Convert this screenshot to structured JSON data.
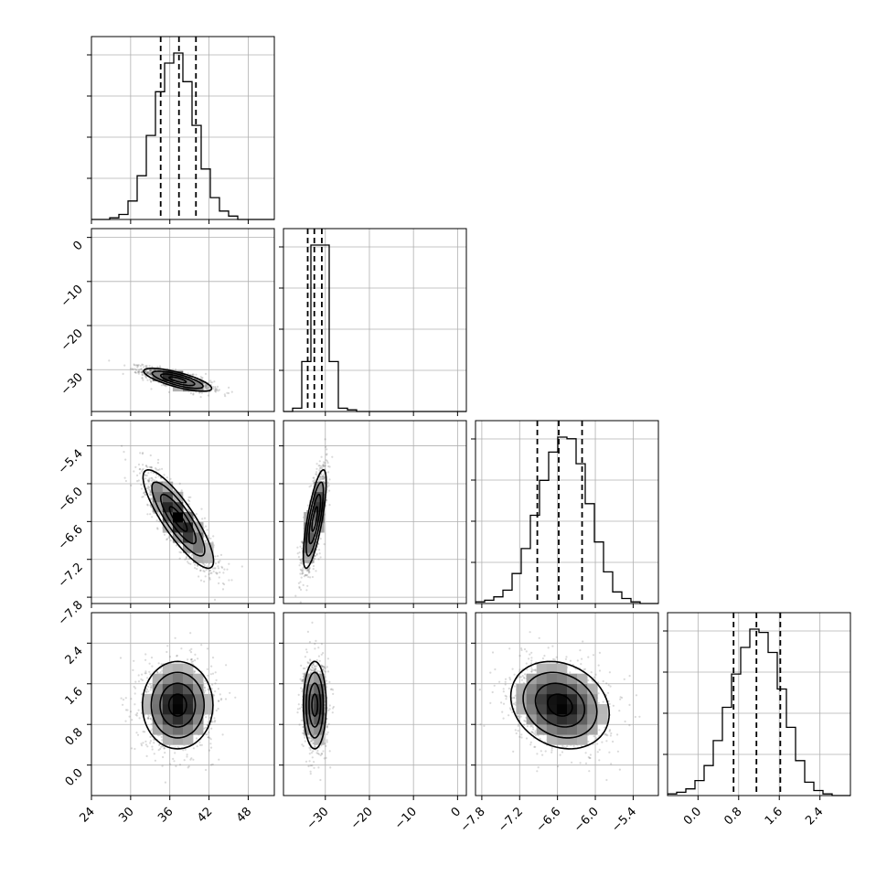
{
  "chart_data": {
    "type": "corner",
    "title": "",
    "parameter_labels": [],
    "grid": true,
    "colors": {
      "marks": "#000000",
      "grid": "#b0b0b0",
      "points": "#555555"
    },
    "axes": {
      "p1": {
        "range": [
          24,
          52
        ],
        "ticks": [
          24,
          30,
          36,
          42,
          48
        ],
        "tick_labels": [
          "24",
          "30",
          "36",
          "42",
          "48"
        ]
      },
      "p2": {
        "range": [
          -39.5,
          2
        ],
        "ticks": [
          0,
          -10,
          -20,
          -30
        ],
        "tick_labels": [
          "0",
          "−10",
          "−20",
          "−30"
        ]
      },
      "p3": {
        "range": [
          -7.9,
          -5.0
        ],
        "ticks": [
          -5.4,
          -6.0,
          -6.6,
          -7.2,
          -7.8
        ],
        "tick_labels": [
          "−5.4",
          "−6.0",
          "−6.6",
          "−7.2",
          "−7.8"
        ]
      },
      "p4": {
        "range": [
          -0.6,
          3.0
        ],
        "ticks": [
          0.0,
          0.8,
          1.6,
          2.4
        ],
        "tick_labels": [
          "0.0",
          "0.8",
          "1.6",
          "2.4"
        ]
      }
    },
    "bottom_axis_labels": {
      "p1": [
        "24",
        "30",
        "36",
        "42",
        "48"
      ],
      "p2": [
        "−30",
        "−20",
        "−10",
        "0"
      ],
      "p3": [
        "−7.8",
        "−7.2",
        "−6.6",
        "−6.0",
        "−5.4"
      ],
      "p4": [
        "0.0",
        "0.8",
        "1.6",
        "2.4"
      ]
    },
    "left_axis_labels": {
      "p2": [
        "0",
        "−10",
        "−20",
        "−30"
      ],
      "p3": [
        "−5.4",
        "−6.0",
        "−6.6",
        "−7.2",
        "−7.8"
      ],
      "p4": [
        "2.4",
        "1.6",
        "0.8",
        "0.0"
      ]
    },
    "marginals": {
      "p1": {
        "bin_start": 24,
        "bin_width": 1.4,
        "counts": [
          0,
          0,
          1,
          3,
          11,
          26,
          50,
          76,
          93,
          99,
          82,
          56,
          30,
          13,
          5,
          2,
          0,
          0,
          0,
          0
        ],
        "quantiles": [
          34.6,
          37.4,
          40.0
        ]
      },
      "p2": {
        "bin_start": -39.5,
        "bin_width": 2.075,
        "counts": [
          0,
          2,
          30,
          100,
          100,
          30,
          2,
          1,
          0,
          0,
          0,
          0,
          0,
          0,
          0,
          0,
          0,
          0,
          0,
          0
        ],
        "quantiles": [
          -34.0,
          -32.5,
          -30.8
        ]
      },
      "p3": {
        "bin_start": -7.9,
        "bin_width": 0.145,
        "counts": [
          1,
          2,
          4,
          8,
          18,
          33,
          53,
          74,
          91,
          100,
          99,
          84,
          60,
          37,
          19,
          7,
          3,
          1,
          0,
          0
        ],
        "quantiles": [
          -6.92,
          -6.58,
          -6.21
        ]
      },
      "p4": {
        "bin_start": -0.6,
        "bin_width": 0.18,
        "counts": [
          1,
          2,
          4,
          9,
          18,
          33,
          53,
          73,
          89,
          100,
          98,
          86,
          64,
          41,
          21,
          8,
          3,
          1,
          0,
          0
        ],
        "quantiles": [
          0.7,
          1.15,
          1.62
        ]
      }
    },
    "pairs": [
      {
        "x": "p1",
        "y": "p2",
        "mean": [
          37.2,
          -32.3
        ],
        "sd": [
          2.6,
          1.3
        ],
        "rho": -0.75
      },
      {
        "x": "p1",
        "y": "p3",
        "mean": [
          37.3,
          -6.56
        ],
        "sd": [
          2.7,
          0.39
        ],
        "rho": -0.85
      },
      {
        "x": "p2",
        "y": "p3",
        "mean": [
          -32.4,
          -6.56
        ],
        "sd": [
          1.3,
          0.39
        ],
        "rho": 0.75
      },
      {
        "x": "p1",
        "y": "p4",
        "mean": [
          37.2,
          1.18
        ],
        "sd": [
          2.7,
          0.43
        ],
        "rho": 0.0
      },
      {
        "x": "p2",
        "y": "p4",
        "mean": [
          -32.4,
          1.18
        ],
        "sd": [
          1.3,
          0.43
        ],
        "rho": 0.0
      },
      {
        "x": "p3",
        "y": "p4",
        "mean": [
          -6.56,
          1.18
        ],
        "sd": [
          0.39,
          0.43
        ],
        "rho": -0.2
      }
    ]
  }
}
